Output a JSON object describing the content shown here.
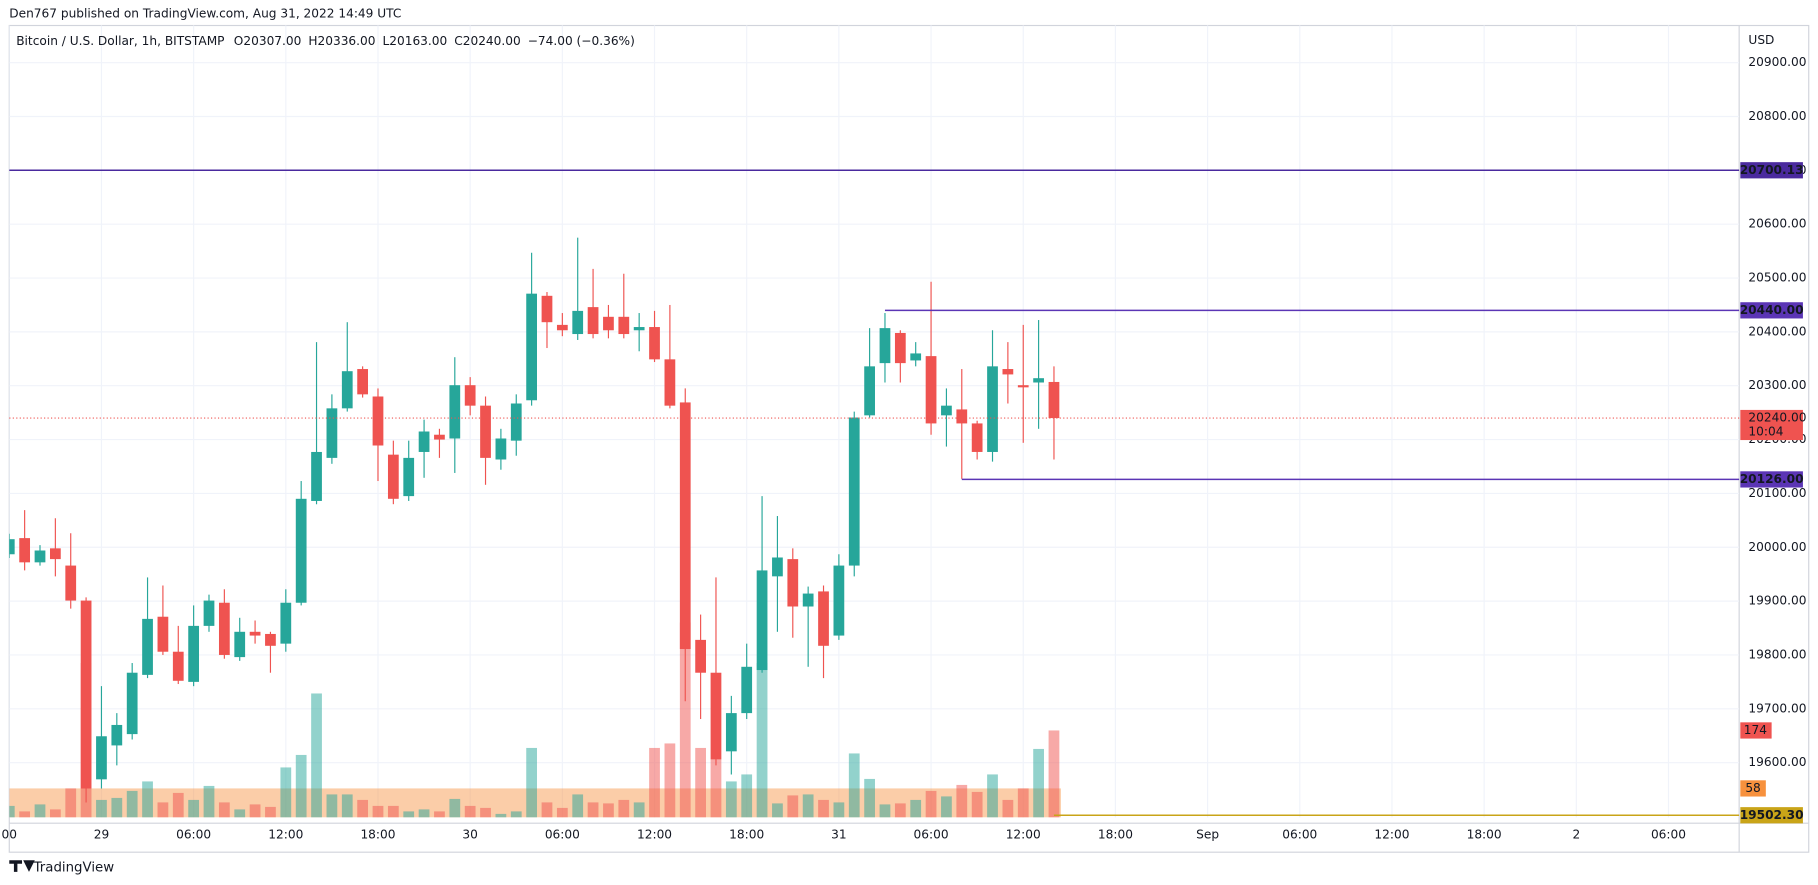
{
  "chart_data": {
    "type": "candlestick",
    "publisher": "Den767 published on TradingView.com, Aug 31, 2022 14:49 UTC",
    "symbol": "Bitcoin / U.S. Dollar, 1h, BITSTAMP",
    "ohlc": [
      {
        "label": "O",
        "value": "20307.00"
      },
      {
        "label": "H",
        "value": "20336.00"
      },
      {
        "label": "L",
        "value": "20163.00"
      },
      {
        "label": "C",
        "value": "20240.00"
      }
    ],
    "change": "−74.00 (−0.36%)",
    "currency": "USD",
    "footer": "TradingView",
    "up_color": "#26a69a",
    "down_color": "#ef5350",
    "x": [
      0,
      1,
      2,
      3,
      4,
      5,
      6,
      7,
      8,
      9,
      10,
      11,
      12,
      13,
      14,
      15,
      16,
      17,
      18,
      19,
      20,
      21,
      22,
      23,
      24,
      25,
      26,
      27,
      28,
      29,
      30,
      31,
      32,
      33,
      34,
      35,
      36,
      37,
      38,
      39,
      40,
      41,
      42,
      43,
      44,
      45,
      46,
      47,
      48,
      49,
      50,
      51,
      52,
      53,
      54,
      55,
      56,
      57,
      58,
      59,
      60,
      61,
      62,
      63,
      64,
      65,
      66,
      67,
      68
    ],
    "open": [
      19987,
      20017,
      19972,
      19998,
      19966,
      19901,
      19569,
      19632,
      19653,
      19763,
      19871,
      19806,
      19750,
      19854,
      19897,
      19796,
      19843,
      19839,
      19821,
      19897,
      20086,
      20166,
      20258,
      20331,
      20280,
      20172,
      20095,
      20177,
      20209,
      20202,
      20301,
      20263,
      20163,
      20198,
      20273,
      20467,
      20413,
      20396,
      20446,
      20428,
      20428,
      20403,
      20409,
      20349,
      20269,
      19828,
      19767,
      19621,
      19692,
      19772,
      19946,
      19978,
      19890,
      19918,
      19836,
      19966,
      20245,
      20342,
      20398,
      20347,
      20355,
      20245,
      20256,
      20230,
      20177,
      20331,
      20301,
      20306,
      20307
    ],
    "high": [
      20025,
      20069,
      20004,
      20054,
      20026,
      19907,
      19742,
      19692,
      19785,
      19944,
      19929,
      19854,
      19892,
      19912,
      19922,
      19869,
      19864,
      19843,
      19922,
      20123,
      20381,
      20284,
      20418,
      20336,
      20295,
      20198,
      20198,
      20237,
      20220,
      20353,
      20316,
      20280,
      20220,
      20284,
      20547,
      20474,
      20435,
      20575,
      20517,
      20450,
      20508,
      20435,
      20439,
      20450,
      20295,
      19875,
      19944,
      19724,
      19821,
      20095,
      20058,
      19998,
      19927,
      19929,
      19987,
      20252,
      20407,
      20435,
      20403,
      20381,
      20493,
      20295,
      20331,
      20235,
      20403,
      20381,
      20413,
      20422,
      20336
    ],
    "low": [
      19980,
      19957,
      19966,
      19946,
      19886,
      19526,
      19552,
      19595,
      19643,
      19757,
      19800,
      19746,
      19742,
      19843,
      19793,
      19789,
      19821,
      19767,
      19806,
      19892,
      20080,
      20155,
      20252,
      20278,
      20123,
      20080,
      20086,
      20129,
      20166,
      20138,
      20245,
      20116,
      20144,
      20170,
      20263,
      20370,
      20392,
      20385,
      20388,
      20388,
      20388,
      20364,
      20344,
      20258,
      19714,
      19681,
      19595,
      19578,
      19681,
      19767,
      19843,
      19832,
      19778,
      19757,
      19828,
      19946,
      20241,
      20306,
      20306,
      20336,
      20209,
      20187,
      20127,
      20163,
      20159,
      20267,
      20194,
      20220,
      20163
    ],
    "close": [
      20015,
      19972,
      19994,
      19978,
      19901,
      19552,
      19649,
      19670,
      19767,
      19867,
      19806,
      19752,
      19854,
      19901,
      19800,
      19843,
      19836,
      19817,
      19897,
      20090,
      20177,
      20258,
      20327,
      20284,
      20189,
      20090,
      20166,
      20215,
      20200,
      20301,
      20263,
      20166,
      20202,
      20267,
      20471,
      20418,
      20403,
      20439,
      20396,
      20403,
      20396,
      20409,
      20349,
      20263,
      19811,
      19767,
      19606,
      19692,
      19778,
      19957,
      19981,
      19890,
      19914,
      19817,
      19966,
      20241,
      20336,
      20407,
      20342,
      20360,
      20230,
      20263,
      20230,
      20177,
      20336,
      20321,
      20297,
      20314,
      20240
    ],
    "volume": [
      23,
      12,
      26,
      16,
      58,
      309,
      35,
      39,
      53,
      72,
      30,
      49,
      35,
      63,
      30,
      16,
      26,
      21,
      100,
      125,
      248,
      46,
      46,
      35,
      23,
      23,
      12,
      16,
      12,
      37,
      23,
      19,
      7,
      12,
      139,
      30,
      19,
      46,
      30,
      28,
      35,
      30,
      139,
      148,
      390,
      139,
      116,
      72,
      86,
      309,
      28,
      44,
      46,
      35,
      30,
      128,
      77,
      26,
      28,
      35,
      53,
      42,
      65,
      51,
      86,
      35,
      58,
      137,
      174
    ],
    "volume_ma": 58,
    "xlim": [
      0,
      112.6
    ],
    "xticks": [
      {
        "value": 0,
        "label": "00"
      },
      {
        "value": 6,
        "label": "29"
      },
      {
        "value": 12,
        "label": "06:00"
      },
      {
        "value": 18,
        "label": "12:00"
      },
      {
        "value": 24,
        "label": "18:00"
      },
      {
        "value": 30,
        "label": "30"
      },
      {
        "value": 36,
        "label": "06:00"
      },
      {
        "value": 42,
        "label": "12:00"
      },
      {
        "value": 48,
        "label": "18:00"
      },
      {
        "value": 54,
        "label": "31"
      },
      {
        "value": 60,
        "label": "06:00"
      },
      {
        "value": 66,
        "label": "12:00"
      },
      {
        "value": 72,
        "label": "18:00"
      },
      {
        "value": 78,
        "label": "Sep"
      },
      {
        "value": 84,
        "label": "06:00"
      },
      {
        "value": 90,
        "label": "12:00"
      },
      {
        "value": 96,
        "label": "18:00"
      },
      {
        "value": 102,
        "label": "2"
      },
      {
        "value": 108,
        "label": "06:00"
      }
    ],
    "ylim": [
      19466,
      20969
    ],
    "yticks": [
      {
        "value": 19600,
        "label": "19600.00"
      },
      {
        "value": 19700,
        "label": "19700.00"
      },
      {
        "value": 19800,
        "label": "19800.00"
      },
      {
        "value": 19900,
        "label": "19900.00"
      },
      {
        "value": 20000,
        "label": "20000.00"
      },
      {
        "value": 20100,
        "label": "20100.00"
      },
      {
        "value": 20200,
        "label": "20200.00"
      },
      {
        "value": 20300,
        "label": "20300.00"
      },
      {
        "value": 20400,
        "label": "20400.00"
      },
      {
        "value": 20500,
        "label": "20500.00"
      },
      {
        "value": 20600,
        "label": "20600.00"
      },
      {
        "value": 20700,
        "label": "20700.00"
      },
      {
        "value": 20800,
        "label": "20800.00"
      },
      {
        "value": 20900,
        "label": "20900.00"
      }
    ],
    "grid": true,
    "levels": [
      {
        "value": 20700.13,
        "start": 0,
        "color": "#4a2a9e"
      },
      {
        "value": 20440,
        "label": "20440.00",
        "start": 57,
        "color": "#5b35b5"
      },
      {
        "value": 20126,
        "label": "20126.00",
        "start": 62,
        "color": "#5b35b5"
      },
      {
        "value": 19502.3,
        "label": "19502.30",
        "start": 68,
        "color": "#c9a418"
      }
    ],
    "last": {
      "value": 20240,
      "label": "20240.00",
      "countdown": "10:04",
      "color": "#ef5350"
    },
    "volume_ma_color": "#f7913d"
  }
}
